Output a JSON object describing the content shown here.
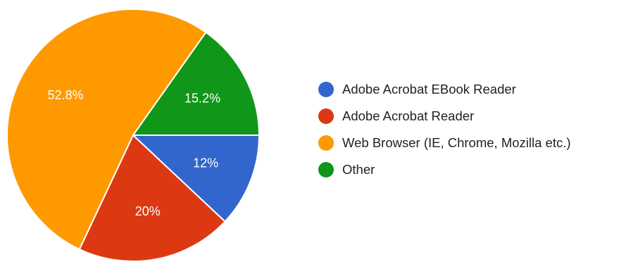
{
  "chart_data": {
    "type": "pie",
    "title": "",
    "legend_position": "right",
    "slices": [
      {
        "name": "Adobe Acrobat EBook Reader",
        "value": 12,
        "label": "12%",
        "color": "#3366cc"
      },
      {
        "name": "Adobe Acrobat Reader",
        "value": 20,
        "label": "20%",
        "color": "#dc3912"
      },
      {
        "name": "Web Browser (IE, Chrome, Mozilla etc.)",
        "value": 52.8,
        "label": "52.8%",
        "color": "#ff9900"
      },
      {
        "name": "Other",
        "value": 15.2,
        "label": "15.2%",
        "color": "#109618"
      }
    ]
  }
}
